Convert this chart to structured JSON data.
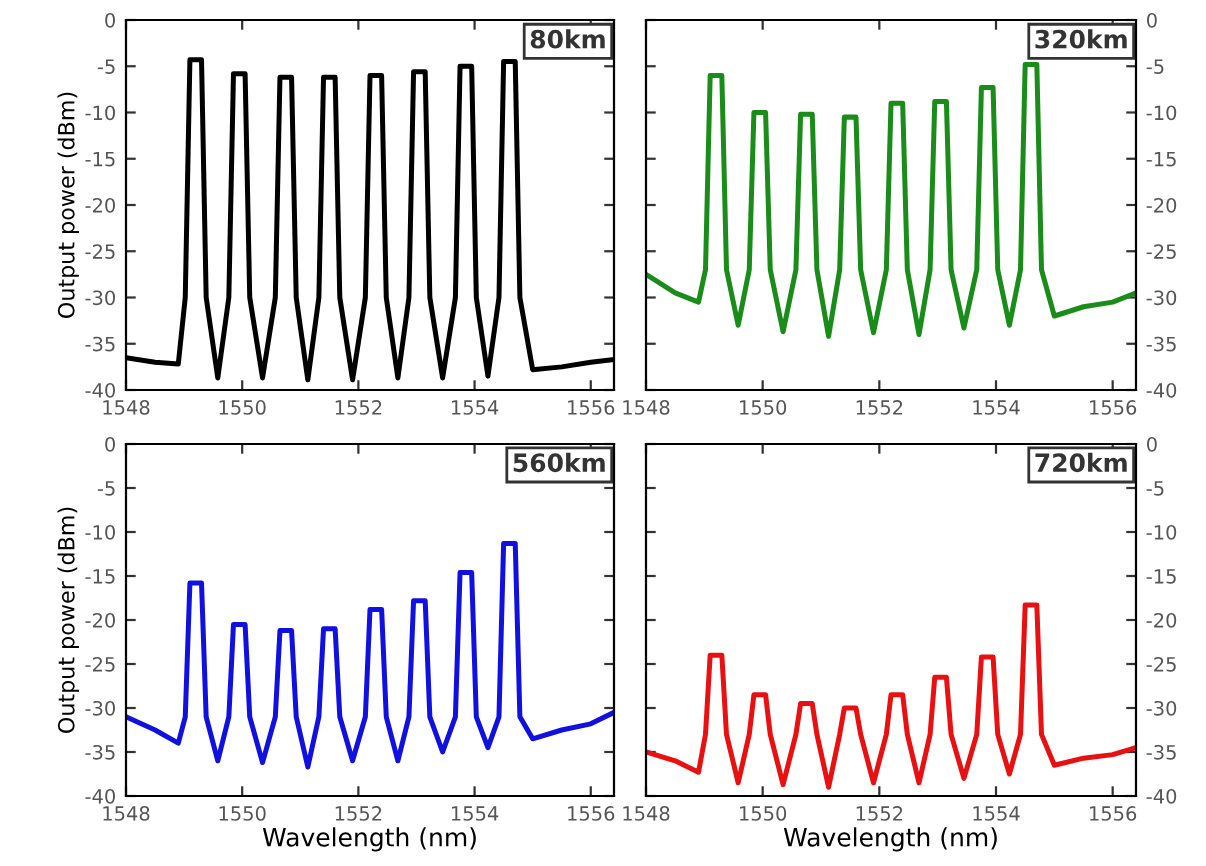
{
  "chart_data": [
    {
      "type": "line",
      "annotations": [
        "80km"
      ],
      "ylabel": "Output power (dBm)",
      "xlim": [
        1548,
        1556.4
      ],
      "xticks": [
        1548,
        1550,
        1552,
        1554,
        1556
      ],
      "ylim": [
        -40,
        0
      ],
      "yticks": [
        0,
        -5,
        -10,
        -15,
        -20,
        -25,
        -30,
        -35,
        -40
      ],
      "grid": false,
      "x": [
        1548.0,
        1548.5,
        1548.9,
        1549.02,
        1549.1,
        1549.3,
        1549.38,
        1549.58,
        1549.77,
        1549.85,
        1550.05,
        1550.13,
        1550.35,
        1550.57,
        1550.65,
        1550.85,
        1550.93,
        1551.13,
        1551.32,
        1551.4,
        1551.6,
        1551.68,
        1551.9,
        1552.12,
        1552.2,
        1552.4,
        1552.48,
        1552.68,
        1552.87,
        1552.95,
        1553.15,
        1553.23,
        1553.45,
        1553.67,
        1553.75,
        1553.95,
        1554.03,
        1554.23,
        1554.42,
        1554.5,
        1554.7,
        1554.78,
        1555.0,
        1555.5,
        1556.0,
        1556.4
      ],
      "series": [
        {
          "color": "#000000",
          "values": [
            -36.5,
            -37,
            -37.2,
            -30,
            -4.3,
            -4.3,
            -30,
            -38.7,
            -30,
            -5.8,
            -5.8,
            -30,
            -38.7,
            -30,
            -6.2,
            -6.2,
            -30,
            -38.9,
            -30,
            -6.2,
            -6.2,
            -30,
            -38.9,
            -30,
            -6.0,
            -6.0,
            -30,
            -38.7,
            -30,
            -5.6,
            -5.6,
            -30,
            -38.7,
            -30,
            -5.0,
            -5.0,
            -30,
            -38.5,
            -30,
            -4.5,
            -4.5,
            -30,
            -37.8,
            -37.5,
            -37,
            -36.7
          ]
        }
      ]
    },
    {
      "type": "line",
      "annotations": [
        "320km"
      ],
      "xlim": [
        1548,
        1556.4
      ],
      "xticks": [
        1548,
        1550,
        1552,
        1554,
        1556
      ],
      "y2lim": [
        -40,
        0
      ],
      "y2ticks": [
        0,
        -5,
        -10,
        -15,
        -20,
        -25,
        -30,
        -35,
        -40
      ],
      "grid": false,
      "x": [
        1548.0,
        1548.5,
        1548.9,
        1549.02,
        1549.1,
        1549.3,
        1549.38,
        1549.58,
        1549.77,
        1549.85,
        1550.05,
        1550.13,
        1550.35,
        1550.57,
        1550.65,
        1550.85,
        1550.93,
        1551.13,
        1551.32,
        1551.4,
        1551.6,
        1551.68,
        1551.9,
        1552.12,
        1552.2,
        1552.4,
        1552.48,
        1552.68,
        1552.87,
        1552.95,
        1553.15,
        1553.23,
        1553.45,
        1553.67,
        1553.75,
        1553.95,
        1554.03,
        1554.23,
        1554.42,
        1554.5,
        1554.7,
        1554.78,
        1555.0,
        1555.5,
        1556.0,
        1556.4
      ],
      "series": [
        {
          "color": "#1a8c1a",
          "axis": "y2",
          "values": [
            -27.5,
            -29.5,
            -30.5,
            -27,
            -6,
            -6,
            -27,
            -33,
            -27,
            -10,
            -10,
            -27,
            -33.7,
            -27,
            -10.2,
            -10.2,
            -27,
            -34.2,
            -27,
            -10.5,
            -10.5,
            -27,
            -33.8,
            -27,
            -9,
            -9,
            -27,
            -34,
            -27,
            -8.8,
            -8.8,
            -27,
            -33.3,
            -27,
            -7.3,
            -7.3,
            -27,
            -33,
            -27,
            -4.8,
            -4.8,
            -27,
            -32,
            -31,
            -30.5,
            -29.5
          ]
        }
      ]
    },
    {
      "type": "line",
      "annotations": [
        "560km"
      ],
      "ylabel": "Output power (dBm)",
      "xlabel": "Wavelength (nm)",
      "xlim": [
        1548,
        1556.4
      ],
      "xticks": [
        1548,
        1550,
        1552,
        1554,
        1556
      ],
      "ylim": [
        -40,
        0
      ],
      "yticks": [
        0,
        -5,
        -10,
        -15,
        -20,
        -25,
        -30,
        -35,
        -40
      ],
      "grid": false,
      "x": [
        1548.0,
        1548.5,
        1548.9,
        1549.02,
        1549.1,
        1549.3,
        1549.38,
        1549.58,
        1549.77,
        1549.85,
        1550.05,
        1550.13,
        1550.35,
        1550.57,
        1550.65,
        1550.85,
        1550.93,
        1551.13,
        1551.32,
        1551.4,
        1551.6,
        1551.68,
        1551.9,
        1552.12,
        1552.2,
        1552.4,
        1552.48,
        1552.68,
        1552.87,
        1552.95,
        1553.15,
        1553.23,
        1553.45,
        1553.67,
        1553.75,
        1553.95,
        1554.03,
        1554.23,
        1554.42,
        1554.5,
        1554.7,
        1554.78,
        1555.0,
        1555.5,
        1556.0,
        1556.4
      ],
      "series": [
        {
          "color": "#1010e0",
          "values": [
            -31,
            -32.5,
            -34,
            -31,
            -15.8,
            -15.8,
            -31,
            -36,
            -31,
            -20.5,
            -20.5,
            -31,
            -36.2,
            -31,
            -21.2,
            -21.2,
            -31,
            -36.7,
            -31,
            -21,
            -21,
            -31,
            -36,
            -31,
            -18.8,
            -18.8,
            -31,
            -36,
            -31,
            -17.8,
            -17.8,
            -31,
            -35,
            -31,
            -14.6,
            -14.6,
            -31,
            -34.5,
            -31,
            -11.3,
            -11.3,
            -31,
            -33.5,
            -32.5,
            -31.8,
            -30.5
          ]
        }
      ]
    },
    {
      "type": "line",
      "annotations": [
        "720km"
      ],
      "xlabel": "Wavelength (nm)",
      "xlim": [
        1548,
        1556.4
      ],
      "xticks": [
        1548,
        1550,
        1552,
        1554,
        1556
      ],
      "y2lim": [
        -40,
        0
      ],
      "y2ticks": [
        0,
        -5,
        -10,
        -15,
        -20,
        -25,
        -30,
        -35,
        -40
      ],
      "grid": false,
      "x": [
        1548.0,
        1548.5,
        1548.9,
        1549.02,
        1549.1,
        1549.3,
        1549.38,
        1549.58,
        1549.77,
        1549.85,
        1550.05,
        1550.13,
        1550.35,
        1550.57,
        1550.65,
        1550.85,
        1550.93,
        1551.13,
        1551.32,
        1551.4,
        1551.6,
        1551.68,
        1551.9,
        1552.12,
        1552.2,
        1552.4,
        1552.48,
        1552.68,
        1552.87,
        1552.95,
        1553.15,
        1553.23,
        1553.45,
        1553.67,
        1553.75,
        1553.95,
        1554.03,
        1554.23,
        1554.42,
        1554.5,
        1554.7,
        1554.78,
        1555.0,
        1555.5,
        1556.0,
        1556.4
      ],
      "series": [
        {
          "color": "#e81010",
          "axis": "y2",
          "values": [
            -35,
            -36,
            -37.3,
            -33,
            -24,
            -24,
            -33,
            -38.5,
            -33,
            -28.5,
            -28.5,
            -33,
            -38.7,
            -33,
            -29.5,
            -29.5,
            -33,
            -39,
            -33,
            -30,
            -30,
            -33,
            -38.5,
            -33,
            -28.5,
            -28.5,
            -33,
            -38.5,
            -33,
            -26.5,
            -26.5,
            -33,
            -38,
            -33,
            -24.2,
            -24.2,
            -33,
            -37.5,
            -33,
            -18.3,
            -18.3,
            -33,
            -36.5,
            -35.7,
            -35.3,
            -34.5
          ]
        }
      ]
    }
  ]
}
